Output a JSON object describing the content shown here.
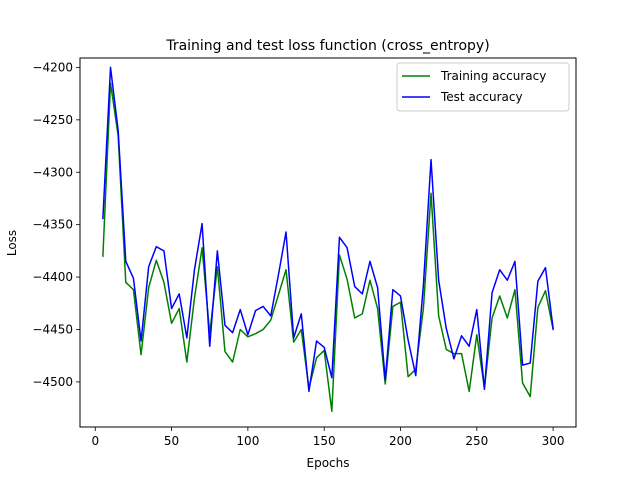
{
  "chart_data": {
    "type": "line",
    "title": "Training and test loss function (cross_entropy)",
    "xlabel": "Epochs",
    "ylabel": "Loss",
    "xlim": [
      -10,
      315
    ],
    "ylim": [
      -4543,
      -4191
    ],
    "xticks": [
      0,
      50,
      100,
      150,
      200,
      250,
      300
    ],
    "yticks": [
      -4500,
      -4450,
      -4400,
      -4350,
      -4300,
      -4250,
      -4200
    ],
    "grid": false,
    "legend_position": "top-right",
    "x": [
      5,
      10,
      15,
      20,
      25,
      30,
      35,
      40,
      45,
      50,
      55,
      60,
      65,
      70,
      75,
      80,
      85,
      90,
      95,
      100,
      105,
      110,
      115,
      120,
      125,
      130,
      135,
      140,
      145,
      150,
      155,
      160,
      165,
      170,
      175,
      180,
      185,
      190,
      195,
      200,
      205,
      210,
      215,
      220,
      225,
      230,
      235,
      240,
      245,
      250,
      255,
      260,
      265,
      270,
      275,
      280,
      285,
      290,
      295,
      300
    ],
    "series": [
      {
        "name": "Training accuracy",
        "color": "#008000",
        "values": [
          -4380,
          -4215,
          -4265,
          -4405,
          -4412,
          -4474,
          -4410,
          -4384,
          -4405,
          -4444,
          -4430,
          -4481,
          -4420,
          -4372,
          -4454,
          -4390,
          -4471,
          -4481,
          -4450,
          -4457,
          -4454,
          -4450,
          -4441,
          -4417,
          -4393,
          -4462,
          -4450,
          -4506,
          -4477,
          -4470,
          -4528,
          -4379,
          -4402,
          -4439,
          -4435,
          -4403,
          -4430,
          -4502,
          -4428,
          -4424,
          -4495,
          -4488,
          -4430,
          -4320,
          -4437,
          -4469,
          -4473,
          -4473,
          -4509,
          -4455,
          -4506,
          -4439,
          -4418,
          -4439,
          -4412,
          -4501,
          -4514,
          -4429,
          -4413,
          -4450
        ]
      },
      {
        "name": "Test accuracy",
        "color": "#0000ff",
        "values": [
          -4344,
          -4200,
          -4260,
          -4385,
          -4401,
          -4461,
          -4390,
          -4371,
          -4375,
          -4430,
          -4416,
          -4458,
          -4393,
          -4349,
          -4466,
          -4375,
          -4446,
          -4453,
          -4431,
          -4455,
          -4432,
          -4428,
          -4437,
          -4398,
          -4357,
          -4458,
          -4435,
          -4509,
          -4461,
          -4467,
          -4496,
          -4362,
          -4372,
          -4409,
          -4416,
          -4385,
          -4410,
          -4498,
          -4412,
          -4418,
          -4460,
          -4494,
          -4408,
          -4288,
          -4403,
          -4449,
          -4478,
          -4456,
          -4466,
          -4431,
          -4507,
          -4415,
          -4393,
          -4403,
          -4385,
          -4484,
          -4482,
          -4404,
          -4391,
          -4449
        ]
      }
    ]
  }
}
